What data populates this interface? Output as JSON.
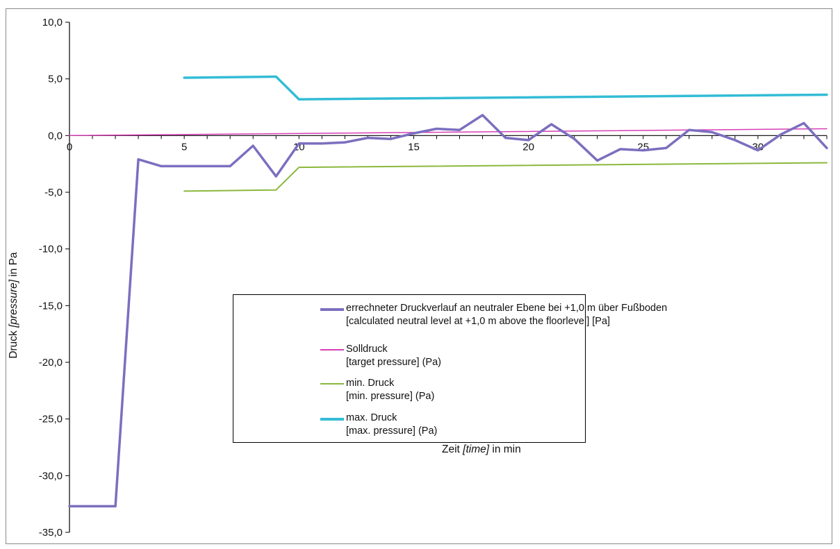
{
  "chart_data": {
    "type": "line",
    "ylabel": {
      "prefix": "Druck ",
      "italic": "[pressure]",
      "suffix": " in Pa"
    },
    "xlabel": {
      "prefix": "Zeit ",
      "italic": "[time]",
      "suffix": " in min"
    },
    "xlim": [
      0,
      33
    ],
    "ylim": [
      -35,
      10
    ],
    "x_ticks": [
      0,
      5,
      10,
      15,
      20,
      25,
      30
    ],
    "x_tick_labels": [
      "0",
      "5",
      "10",
      "15",
      "20",
      "25",
      "30"
    ],
    "y_ticks": [
      10,
      5,
      0,
      -5,
      -10,
      -15,
      -20,
      -25,
      -30,
      -35
    ],
    "y_tick_labels": [
      "10,0",
      "5,0",
      "0,0",
      "-5,0",
      "-10,0",
      "-15,0",
      "-20,0",
      "-25,0",
      "-30,0",
      "-35,0"
    ],
    "grid": false,
    "legend_position": "center-right",
    "series": [
      {
        "key": "calculated",
        "line1": "errechneter Druckverlauf an neutraler Ebene bei +1,0 m über Fußboden",
        "line2": "[calculated neutral level at +1,0 m above the floorlevel] [Pa]",
        "color": "#7b6fbf",
        "width": 3.5,
        "x": [
          0,
          1,
          2,
          3,
          4,
          5,
          6,
          7,
          8,
          9,
          10,
          11,
          12,
          13,
          14,
          15,
          16,
          17,
          18,
          19,
          20,
          21,
          22,
          23,
          24,
          25,
          26,
          27,
          28,
          29,
          30,
          31,
          32,
          33
        ],
        "y": [
          -32.7,
          -32.7,
          -32.7,
          -2.1,
          -2.7,
          -2.7,
          -2.7,
          -2.7,
          -0.9,
          -3.6,
          -0.7,
          -0.7,
          -0.6,
          -0.2,
          -0.3,
          0.2,
          0.6,
          0.5,
          1.8,
          -0.2,
          -0.4,
          1.0,
          -0.3,
          -2.2,
          -1.2,
          -1.3,
          -1.1,
          0.5,
          0.3,
          -0.4,
          -1.3,
          0.1,
          1.1,
          -1.1
        ]
      },
      {
        "key": "target",
        "line1": "Solldruck",
        "line2": "[target pressure] (Pa)",
        "color": "#d63fb5",
        "width": 1.5,
        "x": [
          0,
          33
        ],
        "y": [
          0.0,
          0.6
        ]
      },
      {
        "key": "min",
        "line1": "min. Druck",
        "line2": "[min. pressure] (Pa)",
        "color": "#8ab83c",
        "width": 2,
        "x": [
          5,
          9,
          10,
          33
        ],
        "y": [
          -4.9,
          -4.8,
          -2.8,
          -2.4
        ]
      },
      {
        "key": "max",
        "line1": "max. Druck",
        "line2": "[max. pressure] (Pa)",
        "color": "#33bcd6",
        "width": 3.5,
        "x": [
          5,
          9,
          10,
          33
        ],
        "y": [
          5.1,
          5.2,
          3.2,
          3.6
        ]
      }
    ]
  }
}
